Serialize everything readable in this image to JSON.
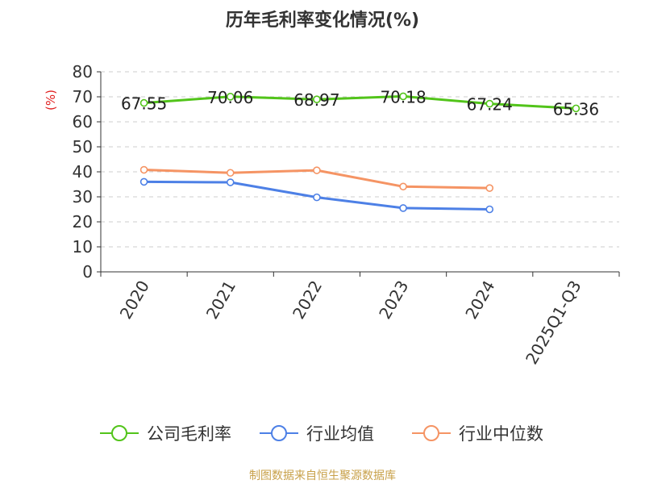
{
  "title": "历年毛利率变化情况(%)",
  "source": "制图数据来自恒生聚源数据库",
  "colors": {
    "company": "#52c41a",
    "industry_avg": "#4d80e6",
    "industry_median": "#f59464",
    "axis": "#333333",
    "grid": "#cccccc",
    "ylabel": "#e02020",
    "source": "#c8a14a"
  },
  "chart_data": {
    "type": "line",
    "title": "历年毛利率变化情况(%)",
    "ylabel": "(%)",
    "xlabel": "",
    "categories": [
      "2020",
      "2021",
      "2022",
      "2023",
      "2024",
      "2025Q1-Q3"
    ],
    "ylim": [
      0,
      80
    ],
    "yticks": [
      0,
      10,
      20,
      30,
      40,
      50,
      60,
      70,
      80
    ],
    "grid": true,
    "legend_position": "bottom",
    "series": [
      {
        "name": "公司毛利率",
        "color": "#52c41a",
        "values": [
          67.55,
          70.06,
          68.97,
          70.18,
          67.24,
          65.36
        ],
        "labels": [
          "67.55",
          "70.06",
          "68.97",
          "70.18",
          "67.24",
          "65.36"
        ]
      },
      {
        "name": "行业均值",
        "color": "#4d80e6",
        "values": [
          36.0,
          35.8,
          29.8,
          25.5,
          25.0,
          null
        ]
      },
      {
        "name": "行业中位数",
        "color": "#f59464",
        "values": [
          40.8,
          39.6,
          40.6,
          34.1,
          33.5,
          null
        ]
      }
    ]
  }
}
